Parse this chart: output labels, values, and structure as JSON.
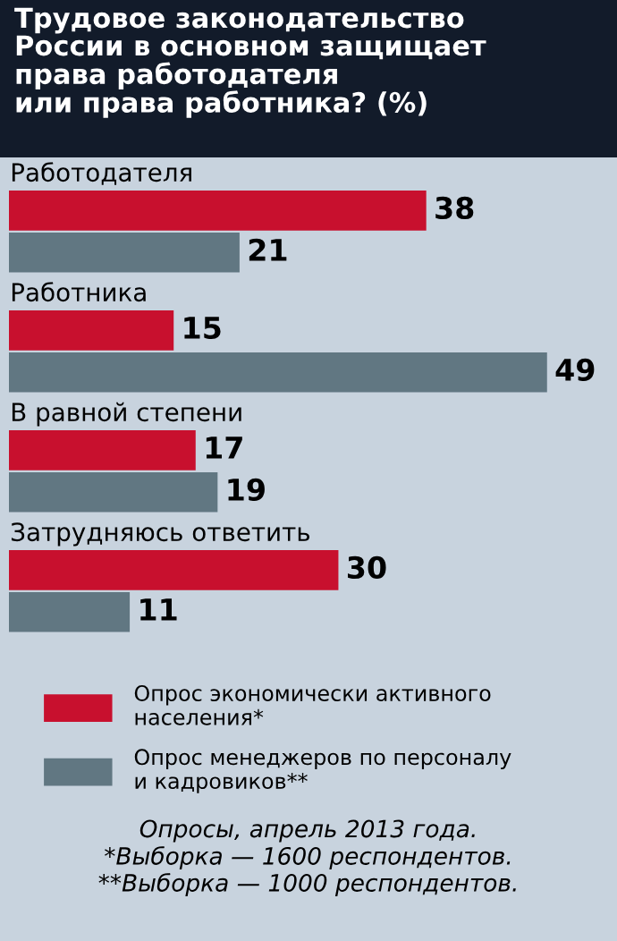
{
  "chart_data": {
    "type": "bar",
    "orientation": "horizontal",
    "title": "Трудовое законодательство\nРоссии в основном защищает\nправа работодателя\nили права работника? (%)",
    "categories": [
      "Работодателя",
      "Работника",
      "В равной степени",
      "Затрудняюсь ответить"
    ],
    "series": [
      {
        "name": "Опрос экономически активного\nнаселения*",
        "color": "#c8102e",
        "values": [
          38,
          15,
          17,
          30
        ]
      },
      {
        "name": "Опрос менеджеров по персоналу\nи кадровиков**",
        "color": "#617782",
        "values": [
          21,
          49,
          19,
          11
        ]
      }
    ],
    "data_labels": true,
    "legend": "bottom",
    "annotations": [
      "Опросы, апрель 2013 года.",
      "*Выборка — 1600 респондентов.",
      "**Выборка — 1000 респондентов."
    ]
  }
}
